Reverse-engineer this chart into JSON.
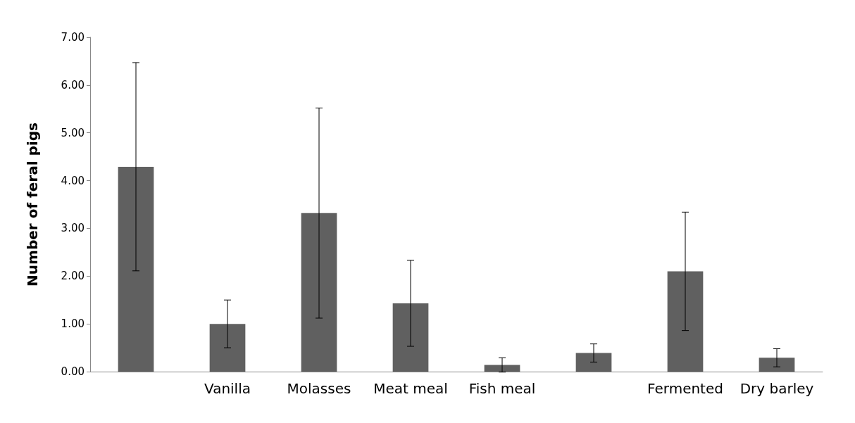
{
  "chart_data": {
    "type": "bar",
    "ylabel": "Number of feral pigs",
    "categories": [
      null,
      "Vanilla",
      "Molasses",
      "Meat meal",
      "Fish meal",
      null,
      "Fermented",
      "Dry barley"
    ],
    "values": [
      4.29,
      1.0,
      3.32,
      1.43,
      0.14,
      0.39,
      2.1,
      0.29
    ],
    "errors": [
      2.18,
      0.5,
      2.2,
      0.9,
      0.15,
      0.19,
      1.24,
      0.19
    ],
    "color": "#606060",
    "ylim": [
      0,
      7
    ],
    "yticks": [
      {
        "value": 0,
        "label": "0.00"
      },
      {
        "value": 1,
        "label": "1.00"
      },
      {
        "value": 2,
        "label": "2.00"
      },
      {
        "value": 3,
        "label": "3.00"
      },
      {
        "value": 4,
        "label": "4.00"
      },
      {
        "value": 5,
        "label": "5.00"
      },
      {
        "value": 6,
        "label": "6.00"
      },
      {
        "value": 7,
        "label": "7.00"
      }
    ],
    "grid": false
  }
}
